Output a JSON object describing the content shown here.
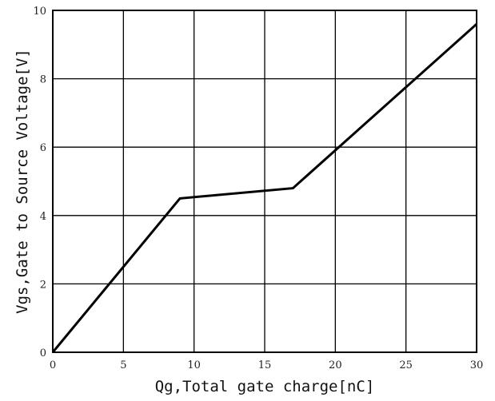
{
  "chart_data": {
    "type": "line",
    "xlabel": "Qg,Total gate charge[nC]",
    "ylabel": "Vgs,Gate to Source Voltage[V]",
    "xlim": [
      0,
      30
    ],
    "ylim": [
      0,
      10
    ],
    "x_ticks": [
      0,
      5,
      10,
      15,
      20,
      25,
      30
    ],
    "y_ticks": [
      0,
      2,
      4,
      6,
      8,
      10
    ],
    "x_tick_labels": [
      "0",
      "5",
      "10",
      "15",
      "20",
      "25",
      "30"
    ],
    "y_tick_labels": [
      "0",
      "2",
      "4",
      "6",
      "8",
      "10"
    ],
    "grid": true,
    "series": [
      {
        "points": [
          {
            "x": 0,
            "y": 0
          },
          {
            "x": 9,
            "y": 4.5
          },
          {
            "x": 17,
            "y": 4.8
          },
          {
            "x": 30,
            "y": 9.6
          }
        ]
      }
    ],
    "colors": {
      "line": "#000000",
      "grid": "#000000",
      "background": "#ffffff"
    }
  }
}
